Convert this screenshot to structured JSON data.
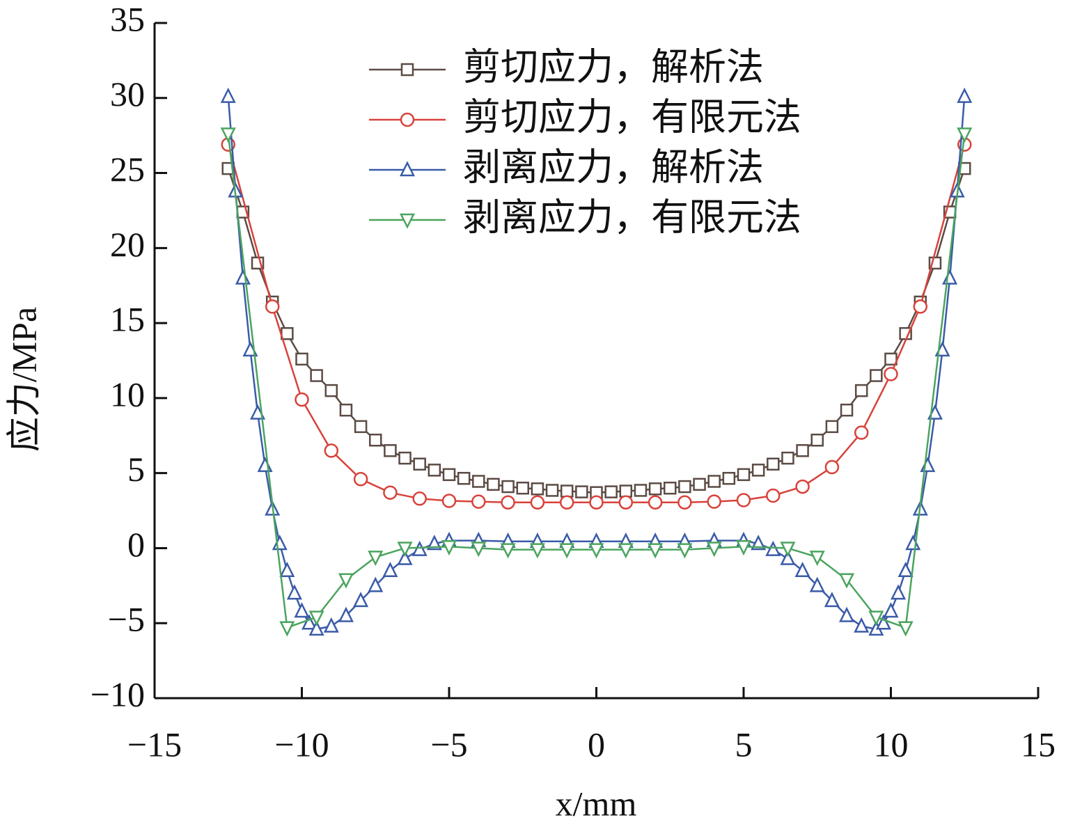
{
  "chart_data": {
    "type": "line",
    "xlabel": "x/mm",
    "ylabel": "应力/MPa",
    "xlim": [
      -15,
      15
    ],
    "ylim": [
      -10,
      35
    ],
    "xticks": [
      {
        "value": -15,
        "label": "−15"
      },
      {
        "value": -10,
        "label": "−10"
      },
      {
        "value": -5,
        "label": "−5"
      },
      0,
      5,
      10,
      15
    ],
    "yticks": [
      {
        "value": -10,
        "label": "−10"
      },
      {
        "value": -5,
        "label": "−5"
      },
      0,
      5,
      10,
      15,
      20,
      25,
      30,
      35
    ],
    "legend": "top-right",
    "series": [
      {
        "name": "剪切应力，解析法",
        "color": "#5b4b44",
        "marker": "square",
        "x": [
          -12.5,
          -12,
          -11.5,
          -11,
          -10.5,
          -10,
          -9.5,
          -9,
          -8.5,
          -8,
          -7.5,
          -7,
          -6.5,
          -6,
          -5.5,
          -5,
          -4.5,
          -4,
          -3.5,
          -3,
          -2.5,
          -2,
          -1.5,
          -1,
          -0.5,
          0,
          0.5,
          1,
          1.5,
          2,
          2.5,
          3,
          3.5,
          4,
          4.5,
          5,
          5.5,
          6,
          6.5,
          7,
          7.5,
          8,
          8.5,
          9,
          9.5,
          10,
          10.5,
          11,
          11.5,
          12,
          12.5
        ],
        "values": [
          25.3,
          22.4,
          19.0,
          16.4,
          14.3,
          12.6,
          11.5,
          10.5,
          9.2,
          8.1,
          7.2,
          6.5,
          6.0,
          5.6,
          5.2,
          4.9,
          4.65,
          4.45,
          4.25,
          4.1,
          4.0,
          3.95,
          3.85,
          3.8,
          3.75,
          3.7,
          3.75,
          3.8,
          3.85,
          3.95,
          4.0,
          4.1,
          4.25,
          4.45,
          4.65,
          4.9,
          5.2,
          5.6,
          6.0,
          6.5,
          7.2,
          8.1,
          9.2,
          10.5,
          11.5,
          12.6,
          14.3,
          16.4,
          19.0,
          22.4,
          25.3
        ]
      },
      {
        "name": "剪切应力，有限元法",
        "color": "#d8423b",
        "marker": "circle",
        "x": [
          -12.5,
          -11,
          -10,
          -9,
          -8,
          -7,
          -6,
          -5,
          -4,
          -3,
          -2,
          -1,
          0,
          1,
          2,
          3,
          4,
          5,
          6,
          7,
          8,
          9,
          10,
          11,
          12.5
        ],
        "values": [
          26.9,
          16.1,
          9.9,
          6.5,
          4.6,
          3.7,
          3.3,
          3.15,
          3.1,
          3.05,
          3.05,
          3.05,
          3.05,
          3.05,
          3.05,
          3.05,
          3.1,
          3.2,
          3.5,
          4.1,
          5.4,
          7.7,
          11.6,
          16.1,
          26.9
        ]
      },
      {
        "name": "剥离应力，解析法",
        "color": "#3a5ba8",
        "marker": "triangle-up",
        "x": [
          -12.5,
          -12.25,
          -12,
          -11.75,
          -11.5,
          -11.25,
          -11,
          -10.75,
          -10.5,
          -10.25,
          -10,
          -9.75,
          -9.5,
          -9,
          -8.5,
          -8,
          -7.5,
          -7,
          -6.5,
          -6,
          -5.5,
          -5,
          -4,
          -3,
          -2,
          -1,
          0,
          1,
          2,
          3,
          4,
          5,
          5.5,
          6,
          6.5,
          7,
          7.5,
          8,
          8.5,
          9,
          9.5,
          9.75,
          10,
          10.25,
          10.5,
          10.75,
          11,
          11.25,
          11.5,
          11.75,
          12,
          12.25,
          12.5
        ],
        "values": [
          30.1,
          23.8,
          18.0,
          13.2,
          9.0,
          5.5,
          2.6,
          0.3,
          -1.5,
          -3.0,
          -4.2,
          -5.0,
          -5.4,
          -5.2,
          -4.5,
          -3.5,
          -2.5,
          -1.5,
          -0.7,
          -0.1,
          0.3,
          0.5,
          0.5,
          0.45,
          0.45,
          0.45,
          0.45,
          0.45,
          0.45,
          0.45,
          0.5,
          0.5,
          0.3,
          -0.1,
          -0.7,
          -1.5,
          -2.5,
          -3.5,
          -4.5,
          -5.2,
          -5.4,
          -5.0,
          -4.2,
          -3.0,
          -1.5,
          0.3,
          2.6,
          5.5,
          9.0,
          13.2,
          18.0,
          23.8,
          30.1
        ]
      },
      {
        "name": "剥离应力，有限元法",
        "color": "#4aa45e",
        "marker": "triangle-down",
        "x": [
          -12.5,
          -10.5,
          -9.5,
          -8.5,
          -7.5,
          -6.5,
          -5,
          -4,
          -3,
          -2,
          -1,
          0,
          1,
          2,
          3,
          4,
          5,
          6.5,
          7.5,
          8.5,
          9.5,
          10.5,
          12.5
        ],
        "values": [
          27.6,
          -5.3,
          -4.6,
          -2.1,
          -0.6,
          0.0,
          0.1,
          0.0,
          -0.1,
          -0.1,
          -0.1,
          -0.1,
          -0.1,
          -0.1,
          -0.1,
          0.0,
          0.1,
          0.0,
          -0.6,
          -2.1,
          -4.6,
          -5.3,
          27.6
        ]
      }
    ]
  }
}
